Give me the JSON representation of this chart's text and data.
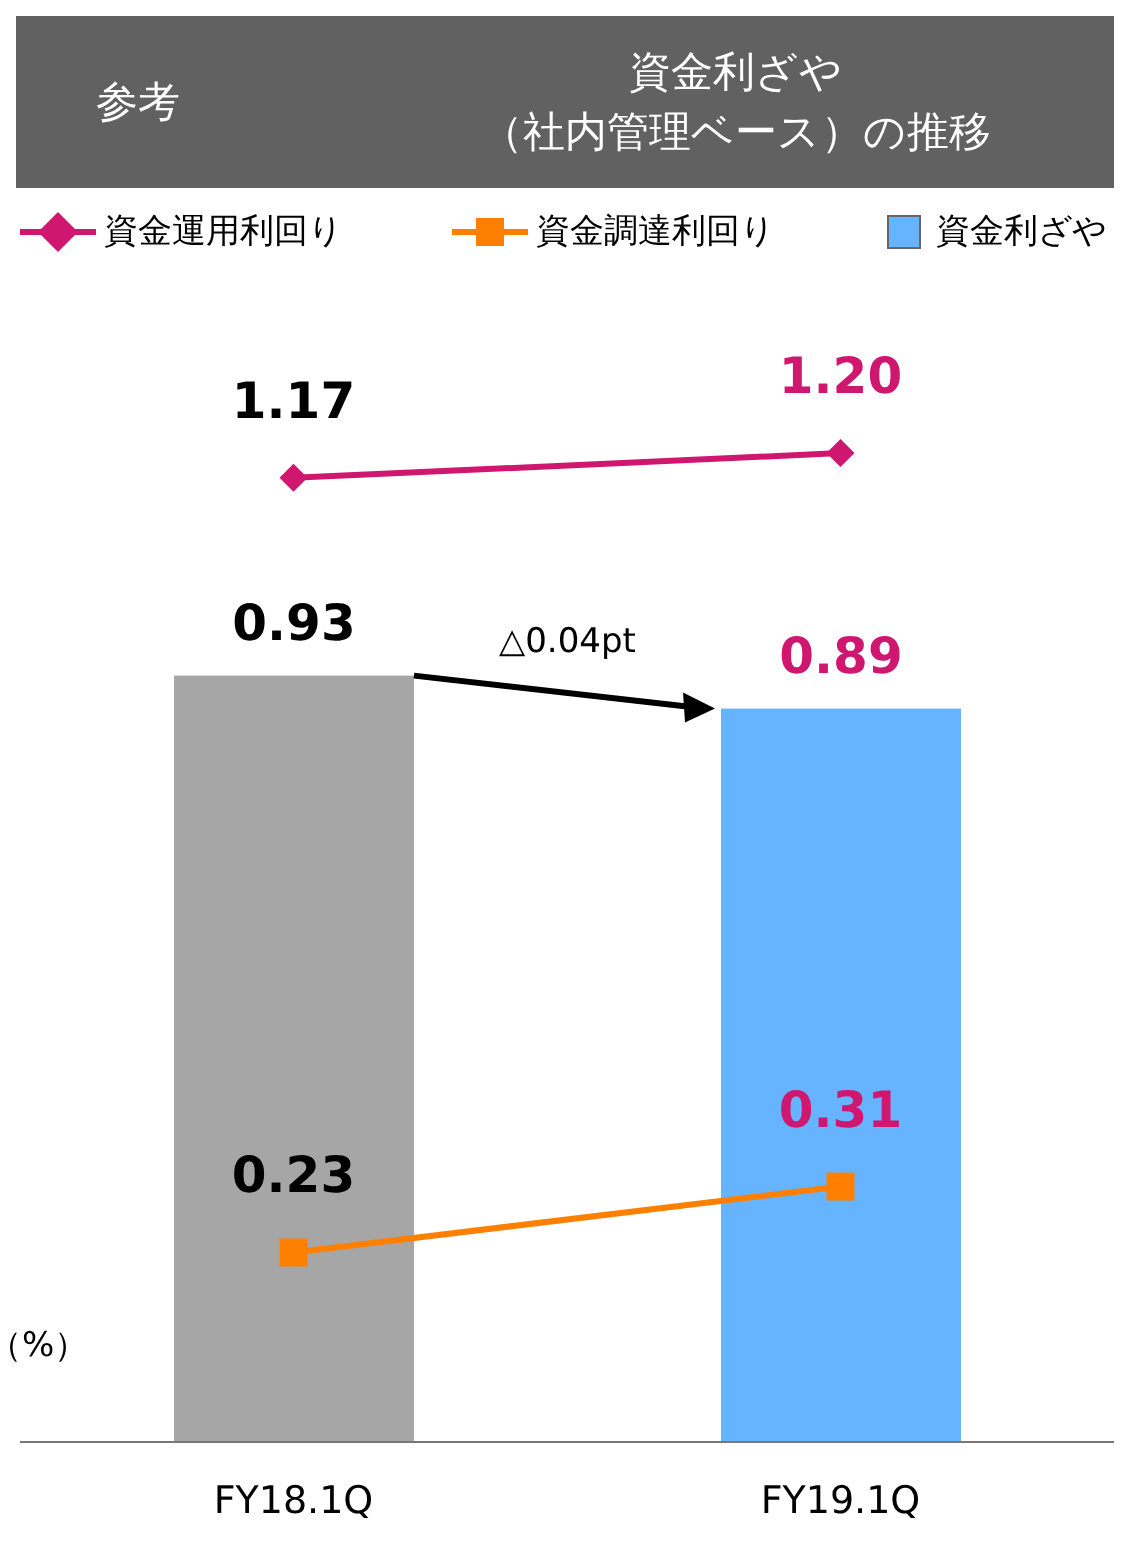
{
  "chart_data": {
    "type": "bar",
    "title": "資金利ざや（社内管理ベース）の推移",
    "ylabel": "（%）",
    "annotations": [
      "参考",
      "△0.04pt"
    ],
    "categories": [
      "FY18.1Q",
      "FY19.1Q"
    ],
    "series": [
      {
        "name": "資金運用利回り",
        "type": "line",
        "color": "#d0176f",
        "marker": "diamond",
        "values": [
          1.17,
          1.2
        ],
        "value_labels": [
          "1.17",
          "1.20"
        ]
      },
      {
        "name": "資金調達利回り",
        "type": "line",
        "color": "#ff8000",
        "marker": "square",
        "values": [
          0.23,
          0.31
        ],
        "value_labels": [
          "0.23",
          "0.31"
        ]
      },
      {
        "name": "資金利ざや",
        "color": "#66b3ff",
        "colors": [
          "#a6a6a6",
          "#66b3ff"
        ],
        "values": [
          0.93,
          0.89
        ],
        "value_labels": [
          "0.93",
          "0.89"
        ]
      }
    ],
    "legend": "top"
  }
}
